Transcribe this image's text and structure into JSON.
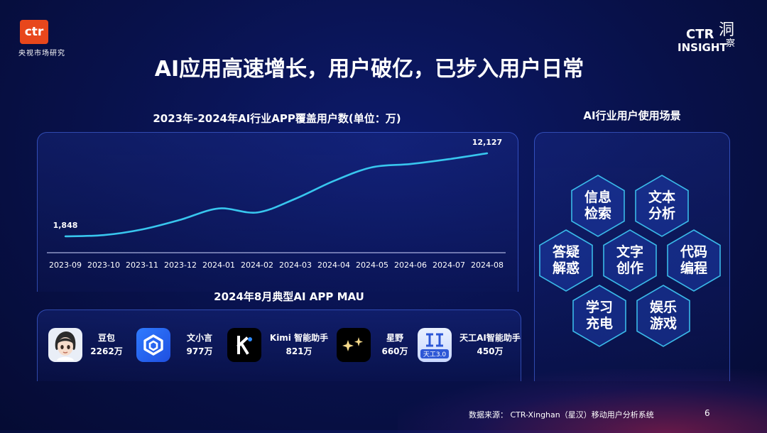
{
  "header": {
    "logo_text": "ctr",
    "logo_sub": "央视市场研究",
    "title": "AI应用高速增长，用户破亿，已步入用户日常",
    "insight_ctr": "CTR",
    "insight_insight": "INSIGHT",
    "insight_dong": "洞",
    "insight_cha": "察"
  },
  "colors": {
    "accent_line": "#38c6ee",
    "logo_red": "#e8471c",
    "panel_border": "#4f6fe8"
  },
  "chart_title": "2023年-2024年AI行业APP覆盖用户数(单位：万)",
  "chart_data": {
    "type": "line",
    "title": "2023年-2024年AI行业APP覆盖用户数(单位：万)",
    "categories": [
      "2023-09",
      "2023-10",
      "2023-11",
      "2023-12",
      "2024-01",
      "2024-02",
      "2024-03",
      "2024-04",
      "2024-05",
      "2024-06",
      "2024-07",
      "2024-08"
    ],
    "series": [
      {
        "values": [
          1848,
          2000,
          2700,
          3900,
          5300,
          4800,
          6500,
          8700,
          10400,
          10800,
          11400,
          12127
        ]
      }
    ],
    "data_labels": [
      {
        "index": 0,
        "text": "1,848"
      },
      {
        "index": 11,
        "text": "12,127"
      }
    ],
    "ylim": [
      0,
      13000
    ],
    "grid": false,
    "legend": "none"
  },
  "apps_title": "2024年8月典型AI APP MAU",
  "apps": [
    {
      "name": "豆包",
      "value": "2262万",
      "icon": "doubao-avatar-icon"
    },
    {
      "name": "文小言",
      "value": "977万",
      "icon": "wenxiaoyan-icon"
    },
    {
      "name": "Kimi 智能助手",
      "value": "821万",
      "icon": "kimi-icon"
    },
    {
      "name": "星野",
      "value": "660万",
      "icon": "xingye-sparkle-icon"
    },
    {
      "name": "天工AI智能助手",
      "value": "450万",
      "icon": "tiangong-icon",
      "badge": "天工3.0"
    }
  ],
  "scenes_title": "AI行业用户使用场景",
  "scenes": [
    {
      "line1": "信息",
      "line2": "检索"
    },
    {
      "line1": "文本",
      "line2": "分析"
    },
    {
      "line1": "答疑",
      "line2": "解惑"
    },
    {
      "line1": "文字",
      "line2": "创作"
    },
    {
      "line1": "代码",
      "line2": "编程"
    },
    {
      "line1": "学习",
      "line2": "充电"
    },
    {
      "line1": "娱乐",
      "line2": "游戏"
    }
  ],
  "footer": {
    "source": "数据来源： CTR-Xinghan（星汉）移动用户分析系统",
    "page": "6"
  }
}
